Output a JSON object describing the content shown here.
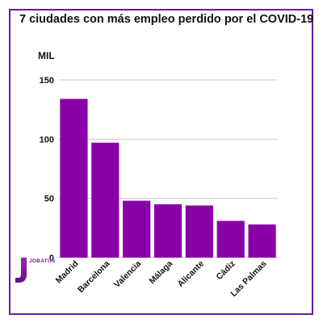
{
  "chart_data": {
    "type": "bar",
    "title": "7 ciudades con más empleo perdido por el COVID-19",
    "ylabel": "MIL",
    "xlabel": "",
    "categories": [
      "Madrid",
      "Barcelona",
      "Valencia",
      "Málaga",
      "Alicante",
      "Cádiz",
      "Las Palmas"
    ],
    "values": [
      134,
      97,
      48,
      45,
      44,
      31,
      28
    ],
    "ylim": [
      0,
      150
    ],
    "yticks": [
      0,
      50,
      100,
      150
    ],
    "grid": true,
    "bar_color": "#8a00a8"
  },
  "logo": {
    "letter": "J",
    "text": "JOBATUS",
    "color": "#7b1fa2"
  }
}
